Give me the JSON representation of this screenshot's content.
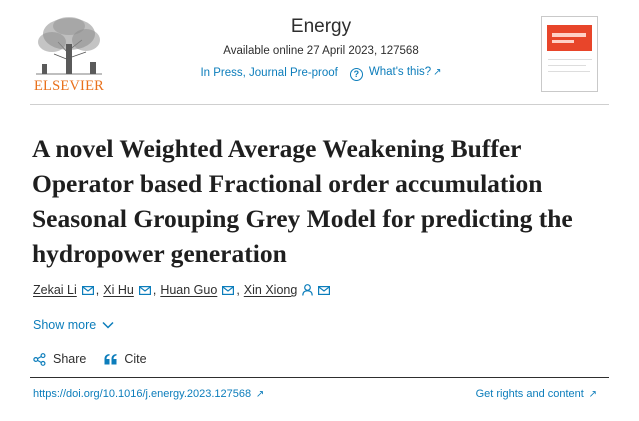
{
  "publisher": {
    "name": "ELSEVIER",
    "accent_color": "#e9711c"
  },
  "journal": {
    "name": "Energy",
    "availability": "Available online 27 April 2023, 127568",
    "status": "In Press, Journal Pre-proof",
    "whats_this": "What's this?",
    "link_color": "#0c7dbb"
  },
  "article": {
    "title": "A novel Weighted Average Weakening Buffer Operator based Fractional order accumulation Seasonal Grouping Grey Model for predicting the hydropower generation",
    "authors": [
      {
        "name": "Zekai Li",
        "icons": [
          "mail-icon"
        ]
      },
      {
        "name": "Xi Hu",
        "icons": [
          "mail-icon"
        ]
      },
      {
        "name": "Huan Guo",
        "icons": [
          "mail-icon"
        ]
      },
      {
        "name": "Xin Xiong",
        "icons": [
          "person-icon",
          "mail-icon"
        ]
      }
    ],
    "separator": ",",
    "show_more": "Show more"
  },
  "actions": {
    "share": "Share",
    "cite": "Cite"
  },
  "footer": {
    "doi": "https://doi.org/10.1016/j.energy.2023.127568",
    "rights": "Get rights and content"
  }
}
